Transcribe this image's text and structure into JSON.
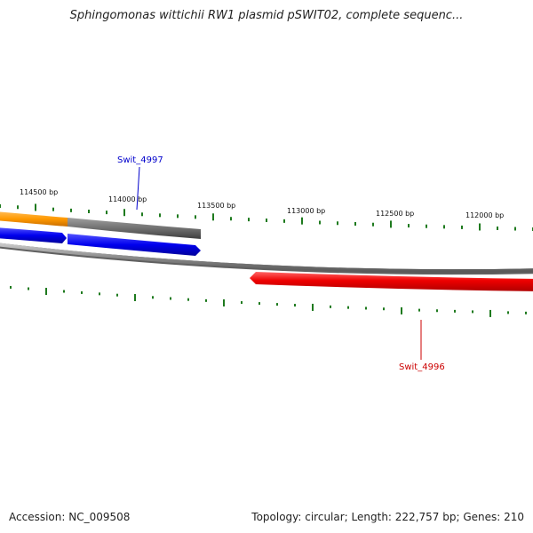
{
  "title": "Sphingomonas wittichii RW1 plasmid pSWIT02, complete sequenc...",
  "footer": {
    "accession": "Accession: NC_009508",
    "summary": "Topology: circular; Length: 222,757 bp; Genes: 210"
  },
  "colors": {
    "tick": "#1e7a1e",
    "backbone": "#8a8a8a",
    "gene_orange": "#ff9900",
    "gene_gray": "#707070",
    "gene_blue": "#0000ee",
    "gene_red": "#ee0000",
    "label_blue": "#0000cc",
    "label_red": "#cc0000"
  },
  "ruler": {
    "labels": [
      {
        "name": "tick-label-114500",
        "text": "114500 bp"
      },
      {
        "name": "tick-label-114000",
        "text": "114000 bp"
      },
      {
        "name": "tick-label-113500",
        "text": "113500 bp"
      },
      {
        "name": "tick-label-113000",
        "text": "113000 bp"
      },
      {
        "name": "tick-label-112500",
        "text": "112500 bp"
      },
      {
        "name": "tick-label-112000",
        "text": "112000 bp"
      }
    ]
  },
  "genes": {
    "swit_4997": {
      "label": "Swit_4997",
      "strand": "forward",
      "color": "blue"
    },
    "swit_4996": {
      "label": "Swit_4996",
      "strand": "reverse",
      "color": "red"
    }
  }
}
